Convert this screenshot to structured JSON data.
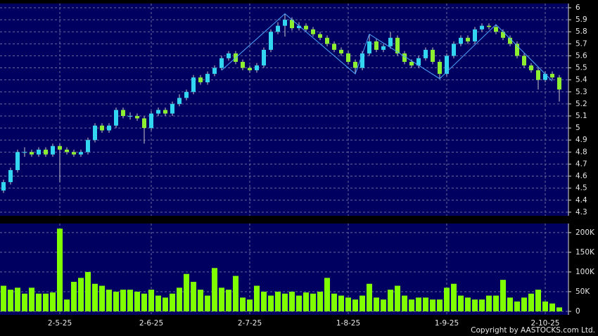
{
  "chart_data": [
    {
      "type": "candlestick",
      "open": [
        4.48,
        4.55,
        4.65,
        4.8,
        4.8,
        4.78,
        4.82,
        4.78,
        4.85,
        4.82,
        4.8,
        4.78,
        4.8,
        4.9,
        5.02,
        4.98,
        5.02,
        5.15,
        5.1,
        5.1,
        5.08,
        5.0,
        5.12,
        5.15,
        5.12,
        5.2,
        5.25,
        5.3,
        5.42,
        5.38,
        5.45,
        5.5,
        5.58,
        5.62,
        5.55,
        5.5,
        5.48,
        5.52,
        5.65,
        5.8,
        5.85,
        5.9,
        5.83,
        5.85,
        5.82,
        5.78,
        5.75,
        5.7,
        5.65,
        5.62,
        5.55,
        5.5,
        5.62,
        5.72,
        5.65,
        5.68,
        5.75,
        5.62,
        5.55,
        5.52,
        5.58,
        5.65,
        5.55,
        5.45,
        5.6,
        5.7,
        5.75,
        5.72,
        5.82,
        5.85,
        5.84,
        5.8,
        5.75,
        5.7,
        5.6,
        5.52,
        5.48,
        5.4,
        5.45,
        5.42
      ],
      "high": [
        4.57,
        4.67,
        4.82,
        4.84,
        4.82,
        4.84,
        4.84,
        4.87,
        4.87,
        4.84,
        4.82,
        4.82,
        4.92,
        5.04,
        5.04,
        5.04,
        5.17,
        5.17,
        5.13,
        5.12,
        5.1,
        5.14,
        5.17,
        5.17,
        5.22,
        5.28,
        5.32,
        5.44,
        5.44,
        5.47,
        5.52,
        5.6,
        5.64,
        5.64,
        5.57,
        5.52,
        5.54,
        5.67,
        5.82,
        5.88,
        5.95,
        5.92,
        5.88,
        5.87,
        5.84,
        5.8,
        5.77,
        5.72,
        5.67,
        5.64,
        5.57,
        5.64,
        5.78,
        5.74,
        5.7,
        5.8,
        5.77,
        5.64,
        5.57,
        5.6,
        5.67,
        5.67,
        5.57,
        5.62,
        5.72,
        5.77,
        5.77,
        5.84,
        5.87,
        5.87,
        5.86,
        5.82,
        5.77,
        5.72,
        5.62,
        5.54,
        5.5,
        5.47,
        5.47,
        5.44
      ],
      "low": [
        4.46,
        4.53,
        4.63,
        4.76,
        4.76,
        4.76,
        4.76,
        4.76,
        4.55,
        4.78,
        4.76,
        4.76,
        4.78,
        4.88,
        4.96,
        4.96,
        5.0,
        5.08,
        5.07,
        5.06,
        4.87,
        4.98,
        5.1,
        5.1,
        5.1,
        5.18,
        5.23,
        5.28,
        5.36,
        5.36,
        5.43,
        5.48,
        5.56,
        5.53,
        5.48,
        5.46,
        5.46,
        5.5,
        5.63,
        5.78,
        5.76,
        5.81,
        5.81,
        5.8,
        5.76,
        5.73,
        5.68,
        5.63,
        5.6,
        5.53,
        5.45,
        5.48,
        5.6,
        5.63,
        5.63,
        5.66,
        5.6,
        5.53,
        5.5,
        5.5,
        5.56,
        5.53,
        5.41,
        5.43,
        5.58,
        5.68,
        5.7,
        5.7,
        5.8,
        5.82,
        5.78,
        5.73,
        5.68,
        5.58,
        5.5,
        5.46,
        5.32,
        5.38,
        5.4,
        5.22
      ],
      "close": [
        4.55,
        4.65,
        4.8,
        4.8,
        4.78,
        4.82,
        4.78,
        4.85,
        4.82,
        4.8,
        4.78,
        4.8,
        4.9,
        5.02,
        4.98,
        5.02,
        5.15,
        5.1,
        5.1,
        5.08,
        5.0,
        5.12,
        5.15,
        5.12,
        5.2,
        5.25,
        5.3,
        5.42,
        5.38,
        5.45,
        5.5,
        5.58,
        5.62,
        5.55,
        5.5,
        5.48,
        5.52,
        5.65,
        5.8,
        5.85,
        5.9,
        5.83,
        5.85,
        5.82,
        5.78,
        5.75,
        5.7,
        5.65,
        5.62,
        5.55,
        5.5,
        5.62,
        5.72,
        5.65,
        5.68,
        5.75,
        5.62,
        5.55,
        5.52,
        5.58,
        5.65,
        5.55,
        5.45,
        5.6,
        5.7,
        5.75,
        5.72,
        5.82,
        5.85,
        5.84,
        5.8,
        5.75,
        5.7,
        5.6,
        5.52,
        5.48,
        5.4,
        5.45,
        5.42,
        5.32
      ],
      "up_color": "#33d6f0",
      "down_color": "#8cf030",
      "zigzag": {
        "x": [
          31,
          40,
          50,
          52,
          62,
          70,
          78
        ],
        "values": [
          5.48,
          5.95,
          5.45,
          5.78,
          5.41,
          5.86,
          5.39
        ],
        "color": "#4da6ff"
      },
      "xlim": [
        -0.5,
        80.3
      ],
      "ylim": [
        4.27,
        6.035
      ],
      "yticks": [
        4.3,
        4.4,
        4.5,
        4.6,
        4.7,
        4.8,
        4.9,
        5,
        5.1,
        5.2,
        5.3,
        5.4,
        5.5,
        5.6,
        5.7,
        5.8,
        5.9,
        6
      ],
      "grid": true
    },
    {
      "type": "bar",
      "values": [
        65000,
        55000,
        60000,
        45000,
        60000,
        45000,
        45000,
        48000,
        210000,
        30000,
        75000,
        85000,
        100000,
        70000,
        65000,
        55000,
        50000,
        55000,
        55000,
        50000,
        45000,
        55000,
        40000,
        35000,
        45000,
        60000,
        95000,
        75000,
        55000,
        40000,
        110000,
        60000,
        55000,
        90000,
        35000,
        30000,
        65000,
        50000,
        40000,
        50000,
        45000,
        50000,
        40000,
        48000,
        45000,
        50000,
        85000,
        45000,
        40000,
        35000,
        30000,
        40000,
        70000,
        35000,
        30000,
        55000,
        65000,
        40000,
        30000,
        35000,
        35000,
        30000,
        30000,
        60000,
        70000,
        40000,
        35000,
        30000,
        30000,
        40000,
        40000,
        80000,
        35000,
        25000,
        35000,
        45000,
        55000,
        25000,
        20000,
        10000
      ],
      "color": "#80ff00",
      "xlim": [
        -0.5,
        80.3
      ],
      "xticks": [
        {
          "value": 8,
          "label": "2-5-25"
        },
        {
          "value": 21,
          "label": "2-6-25"
        },
        {
          "value": 35,
          "label": "2-7-25"
        },
        {
          "value": 49,
          "label": "1-8-25"
        },
        {
          "value": 63,
          "label": "1-9-25"
        },
        {
          "value": 77,
          "label": "2-10-25"
        }
      ],
      "ylim": [
        -9000,
        223000
      ],
      "yticks": [
        0,
        {
          "value": 50000,
          "label": "50K"
        },
        {
          "value": 100000,
          "label": "100K"
        },
        {
          "value": 150000,
          "label": "150K"
        },
        {
          "value": 200000,
          "label": "200K"
        }
      ],
      "grid": true
    }
  ],
  "copyright": "Copyright by AASTOCKS.com Ltd."
}
